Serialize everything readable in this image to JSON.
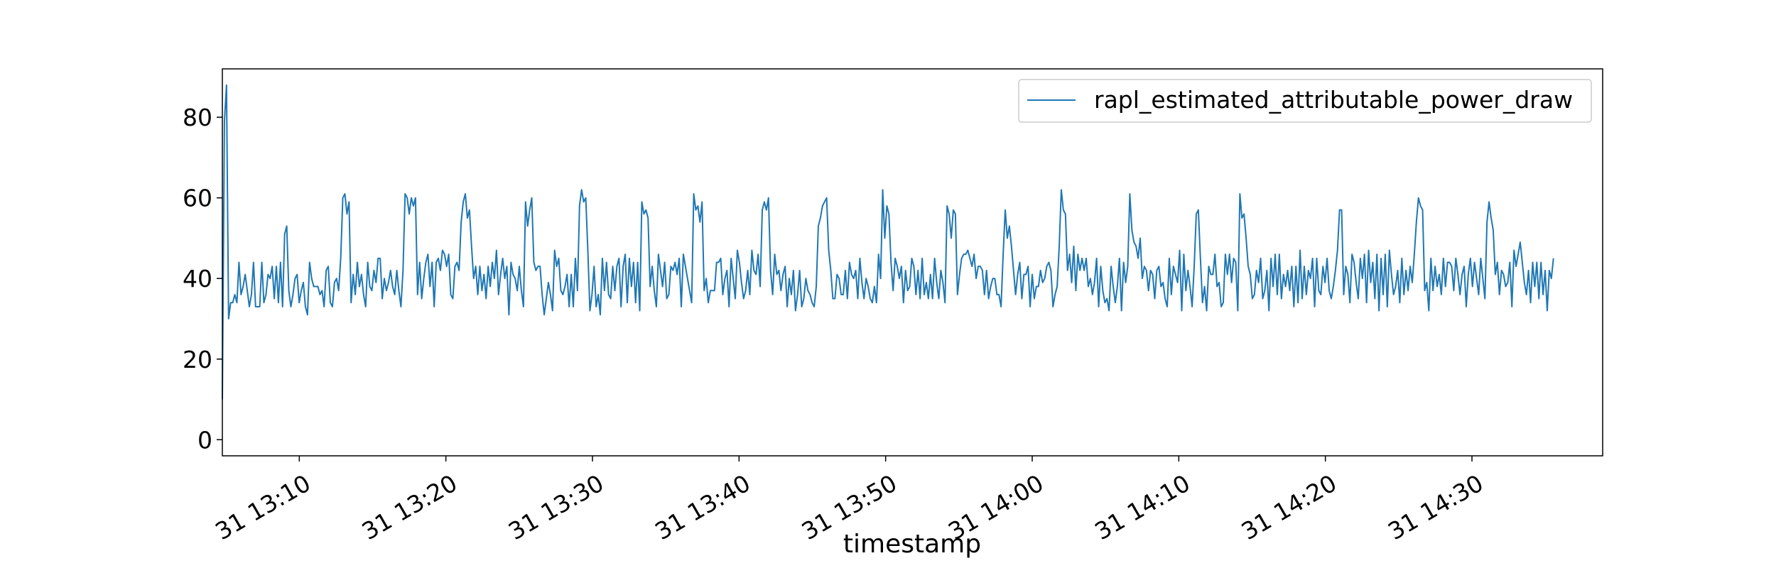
{
  "chart_data": {
    "type": "line",
    "xlabel": "timestamp",
    "ylabel": "",
    "ylim": [
      -4,
      92
    ],
    "xlim": [
      "13:04:45",
      "14:38:55"
    ],
    "grid": false,
    "legend_position": "top-right",
    "series_color": "#1f77b4",
    "yticks": [
      0,
      20,
      40,
      60,
      80
    ],
    "xticks": [
      {
        "t": "13:10:00",
        "label": "31 13:10"
      },
      {
        "t": "13:20:00",
        "label": "31 13:20"
      },
      {
        "t": "13:30:00",
        "label": "31 13:30"
      },
      {
        "t": "13:40:00",
        "label": "31 13:40"
      },
      {
        "t": "13:50:00",
        "label": "31 13:50"
      },
      {
        "t": "14:00:00",
        "label": "31 14:00"
      },
      {
        "t": "14:10:00",
        "label": "31 14:10"
      },
      {
        "t": "14:20:00",
        "label": "31 14:20"
      },
      {
        "t": "14:30:00",
        "label": "31 14:30"
      }
    ],
    "series": [
      {
        "name": "rapl_estimated_attributable_power_draw",
        "x_start": "13:04:45",
        "x_interval_seconds": 8.5,
        "values": [
          10,
          79,
          88,
          30,
          34,
          34,
          36,
          34,
          44,
          36,
          38,
          41,
          37,
          33,
          36,
          44,
          33,
          33,
          33,
          44,
          34,
          36,
          41,
          40,
          43,
          35,
          43,
          34,
          44,
          33,
          51,
          53,
          37,
          33,
          36,
          40,
          41,
          34,
          37,
          39,
          33,
          31,
          44,
          40,
          38,
          38,
          38,
          36,
          37,
          33,
          42,
          43,
          34,
          33,
          39,
          40,
          37,
          45,
          60,
          61,
          56,
          59,
          34,
          41,
          36,
          44,
          38,
          41,
          36,
          33,
          44,
          38,
          37,
          42,
          39,
          45,
          45,
          35,
          40,
          37,
          39,
          42,
          38,
          36,
          42,
          37,
          33,
          42,
          61,
          60,
          56,
          60,
          58,
          60,
          36,
          44,
          35,
          40,
          44,
          46,
          38,
          44,
          33,
          44,
          45,
          42,
          47,
          46,
          43,
          46,
          36,
          35,
          43,
          44,
          42,
          54,
          59,
          61,
          55,
          57,
          48,
          40,
          43,
          36,
          43,
          37,
          41,
          35,
          43,
          38,
          44,
          40,
          47,
          36,
          41,
          45,
          40,
          43,
          31,
          44,
          41,
          40,
          37,
          43,
          37,
          33,
          59,
          53,
          57,
          60,
          44,
          42,
          43,
          43,
          36,
          31,
          35,
          39,
          36,
          32,
          47,
          43,
          45,
          37,
          36,
          38,
          41,
          33,
          41,
          33,
          45,
          37,
          58,
          62,
          59,
          60,
          47,
          32,
          36,
          43,
          33,
          36,
          31,
          45,
          37,
          44,
          36,
          35,
          43,
          37,
          43,
          45,
          33,
          43,
          46,
          34,
          45,
          38,
          44,
          34,
          44,
          32,
          59,
          56,
          57,
          55,
          38,
          43,
          37,
          33,
          46,
          42,
          38,
          44,
          35,
          36,
          43,
          42,
          44,
          41,
          45,
          33,
          46,
          43,
          40,
          37,
          34,
          61,
          57,
          58,
          54,
          59,
          37,
          40,
          34,
          37,
          37,
          37,
          44,
          44,
          45,
          36,
          40,
          42,
          33,
          45,
          40,
          35,
          47,
          44,
          39,
          35,
          37,
          42,
          36,
          47,
          42,
          41,
          46,
          38,
          57,
          59,
          57,
          60,
          42,
          36,
          46,
          41,
          42,
          37,
          41,
          43,
          33,
          40,
          36,
          42,
          32,
          36,
          42,
          33,
          35,
          40,
          37,
          36,
          34,
          33,
          38,
          53,
          55,
          58,
          59,
          60,
          47,
          42,
          35,
          35,
          41,
          40,
          36,
          36,
          42,
          35,
          44,
          41,
          40,
          42,
          35,
          45,
          39,
          35,
          40,
          38,
          35,
          34,
          38,
          34,
          46,
          40,
          62,
          50,
          58,
          56,
          44,
          37,
          45,
          43,
          40,
          43,
          34,
          42,
          37,
          38,
          45,
          43,
          36,
          42,
          35,
          45,
          36,
          39,
          35,
          41,
          35,
          45,
          39,
          35,
          42,
          39,
          34,
          58,
          56,
          50,
          57,
          56,
          36,
          41,
          45,
          46,
          46,
          47,
          45,
          43,
          46,
          40,
          43,
          43,
          42,
          36,
          42,
          35,
          38,
          40,
          40,
          36,
          36,
          33,
          46,
          57,
          50,
          53,
          48,
          42,
          36,
          41,
          44,
          35,
          41,
          41,
          43,
          33,
          41,
          35,
          38,
          38,
          42,
          39,
          40,
          43,
          44,
          42,
          33,
          36,
          38,
          48,
          62,
          57,
          56,
          42,
          46,
          39,
          48,
          37,
          46,
          42,
          45,
          42,
          45,
          38,
          40,
          36,
          39,
          45,
          33,
          43,
          37,
          34,
          35,
          32,
          43,
          38,
          34,
          38,
          45,
          32,
          44,
          39,
          43,
          61,
          52,
          49,
          48,
          45,
          50,
          40,
          43,
          42,
          37,
          42,
          41,
          35,
          42,
          43,
          38,
          39,
          35,
          33,
          45,
          36,
          43,
          41,
          39,
          47,
          32,
          46,
          37,
          42,
          38,
          33,
          43,
          56,
          57,
          45,
          34,
          38,
          32,
          43,
          41,
          41,
          46,
          38,
          39,
          33,
          34,
          46,
          41,
          46,
          39,
          45,
          44,
          32,
          61,
          55,
          56,
          50,
          43,
          41,
          35,
          36,
          42,
          39,
          45,
          35,
          37,
          42,
          32,
          45,
          38,
          46,
          36,
          46,
          35,
          41,
          38,
          42,
          37,
          43,
          33,
          43,
          34,
          47,
          35,
          43,
          36,
          42,
          40,
          45,
          33,
          45,
          37,
          36,
          43,
          39,
          45,
          37,
          35,
          38,
          42,
          47,
          57,
          57,
          36,
          43,
          41,
          34,
          46,
          44,
          39,
          35,
          45,
          40,
          46,
          34,
          47,
          39,
          44,
          35,
          46,
          32,
          45,
          36,
          46,
          33,
          47,
          41,
          36,
          38,
          42,
          34,
          45,
          36,
          42,
          37,
          43,
          39,
          46,
          54,
          60,
          58,
          57,
          37,
          39,
          32,
          45,
          37,
          43,
          38,
          41,
          36,
          45,
          38,
          44,
          44,
          43,
          37,
          45,
          41,
          36,
          41,
          43,
          33,
          41,
          45,
          38,
          44,
          40,
          36,
          45,
          40,
          35,
          54,
          59,
          55,
          52,
          41,
          44,
          36,
          42,
          41,
          38,
          39,
          44,
          33,
          47,
          43,
          46,
          49,
          44,
          39,
          36,
          42,
          34,
          44,
          38,
          44,
          35,
          44,
          36,
          42,
          32,
          42,
          40,
          45
        ]
      }
    ]
  }
}
